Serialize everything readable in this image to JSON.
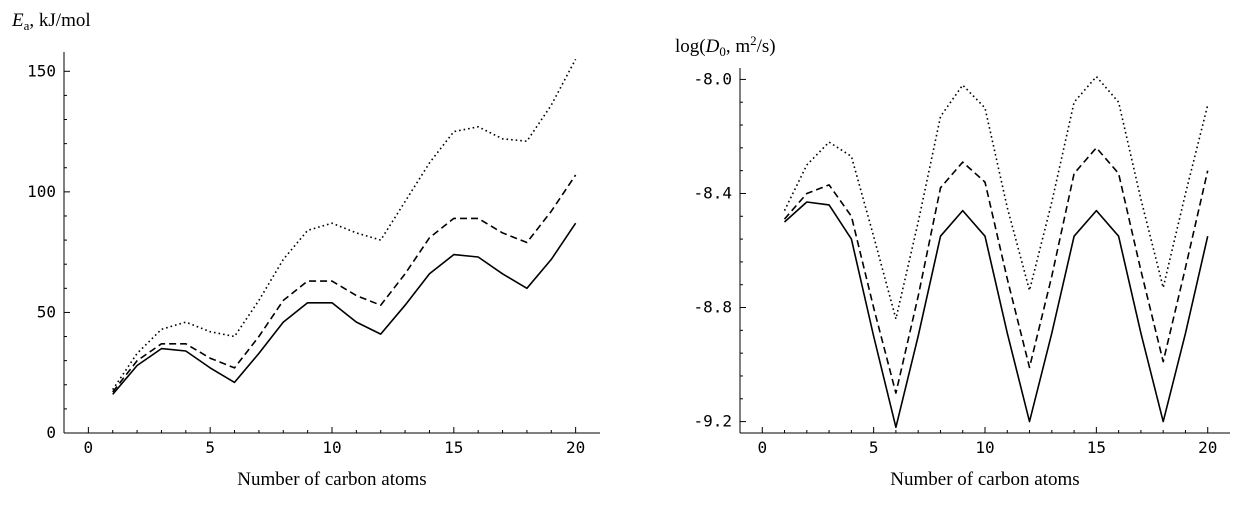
{
  "chart_data": [
    {
      "type": "line",
      "ylabel": {
        "main": "E",
        "sub": "a",
        "rest": ", kJ/mol"
      },
      "xlabel": "Number of carbon atoms",
      "xlim": [
        -1,
        21
      ],
      "ylim": [
        0,
        158
      ],
      "xticks": [
        0,
        5,
        10,
        15,
        20
      ],
      "yticks": [
        0,
        50,
        100,
        150
      ],
      "grid": false,
      "x": [
        1,
        2,
        3,
        4,
        5,
        6,
        7,
        8,
        9,
        10,
        11,
        12,
        13,
        14,
        15,
        16,
        17,
        18,
        19,
        20
      ],
      "series": [
        {
          "style": "solid",
          "values": [
            16,
            28,
            35,
            34,
            27,
            21,
            33,
            46,
            54,
            54,
            46,
            41,
            53,
            66,
            74,
            73,
            66,
            60,
            72,
            87
          ]
        },
        {
          "style": "dashed",
          "values": [
            17,
            30,
            37,
            37,
            31,
            27,
            40,
            55,
            63,
            63,
            57,
            53,
            66,
            81,
            89,
            89,
            83,
            79,
            92,
            107
          ]
        },
        {
          "style": "dotted",
          "values": [
            18,
            33,
            43,
            46,
            42,
            40,
            55,
            72,
            84,
            87,
            83,
            80,
            96,
            112,
            125,
            127,
            122,
            121,
            136,
            155
          ]
        }
      ]
    },
    {
      "type": "line",
      "ylabel": {
        "main": "log(",
        "italic": "D",
        "sub": "0",
        "rest": ", m",
        "sup": "2",
        "tail": "/s)"
      },
      "xlabel": "Number of carbon atoms",
      "xlim": [
        -1,
        21
      ],
      "ylim": [
        -9.24,
        -7.96
      ],
      "xticks": [
        0,
        5,
        10,
        15,
        20
      ],
      "yticks": [
        -8.0,
        -8.4,
        -8.8,
        -9.2
      ],
      "yticklabels": [
        "-8.0",
        "-8.4",
        "-8.8",
        "-9.2"
      ],
      "grid": false,
      "x": [
        1,
        2,
        3,
        4,
        5,
        6,
        7,
        8,
        9,
        10,
        11,
        12,
        13,
        14,
        15,
        16,
        17,
        18,
        19,
        20
      ],
      "series": [
        {
          "style": "solid",
          "values": [
            -8.5,
            -8.43,
            -8.44,
            -8.56,
            -8.9,
            -9.22,
            -8.9,
            -8.55,
            -8.46,
            -8.55,
            -8.89,
            -9.2,
            -8.89,
            -8.55,
            -8.46,
            -8.55,
            -8.89,
            -9.2,
            -8.89,
            -8.55
          ]
        },
        {
          "style": "dashed",
          "values": [
            -8.49,
            -8.4,
            -8.37,
            -8.48,
            -8.8,
            -9.1,
            -8.76,
            -8.38,
            -8.29,
            -8.36,
            -8.7,
            -9.01,
            -8.69,
            -8.33,
            -8.24,
            -8.33,
            -8.67,
            -8.99,
            -8.66,
            -8.32
          ]
        },
        {
          "style": "dotted",
          "values": [
            -8.46,
            -8.3,
            -8.22,
            -8.27,
            -8.55,
            -8.84,
            -8.5,
            -8.13,
            -8.02,
            -8.1,
            -8.45,
            -8.74,
            -8.43,
            -8.08,
            -7.99,
            -8.08,
            -8.42,
            -8.73,
            -8.4,
            -8.09
          ]
        }
      ]
    }
  ]
}
